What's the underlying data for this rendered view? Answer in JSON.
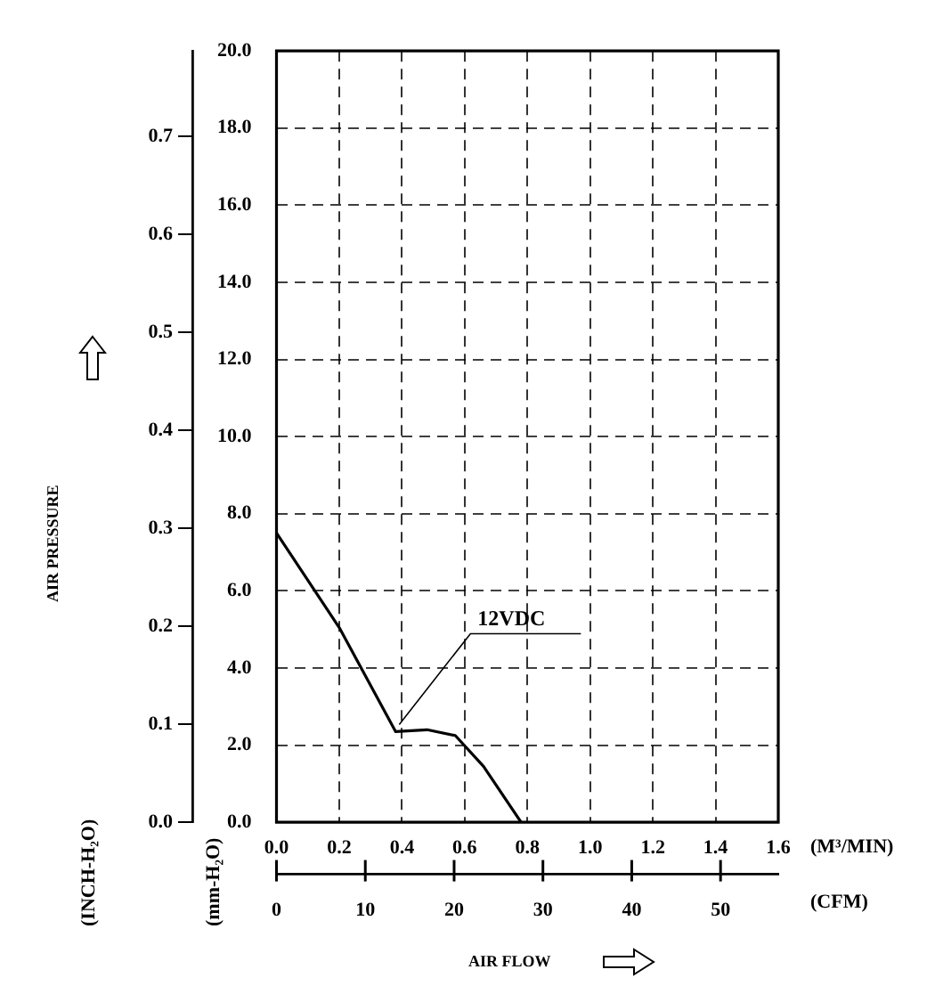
{
  "chart_data": {
    "type": "line",
    "xlabel": "AIR FLOW",
    "x": [
      0,
      0.2,
      0.38,
      0.48,
      0.57,
      0.66,
      0.78
    ],
    "series": [
      {
        "color": "#000000",
        "values": [
          7.5,
          5.05,
          2.35,
          2.4,
          2.25,
          1.45,
          0
        ]
      }
    ],
    "xlim": [
      0,
      1.6
    ],
    "xticks": [
      {
        "value": 0,
        "label": "0.0"
      },
      {
        "value": 0.2,
        "label": "0.2"
      },
      {
        "value": 0.4,
        "label": "0.4"
      },
      {
        "value": 0.6,
        "label": "0.6"
      },
      {
        "value": 0.8,
        "label": "0.8"
      },
      {
        "value": 1,
        "label": "1.0"
      },
      {
        "value": 1.2,
        "label": "1.2"
      },
      {
        "value": 1.4,
        "label": "1.4"
      },
      {
        "value": 1.6,
        "label": "1.6"
      }
    ],
    "ylim": [
      0,
      20
    ],
    "yticks": [
      {
        "value": 0,
        "label": "0.0"
      },
      {
        "value": 2,
        "label": "2.0"
      },
      {
        "value": 4,
        "label": "4.0"
      },
      {
        "value": 6,
        "label": "6.0"
      },
      {
        "value": 8,
        "label": "8.0"
      },
      {
        "value": 10,
        "label": "10.0"
      },
      {
        "value": 12,
        "label": "12.0"
      },
      {
        "value": 14,
        "label": "14.0"
      },
      {
        "value": 16,
        "label": "16.0"
      },
      {
        "value": 18,
        "label": "18.0"
      },
      {
        "value": 20,
        "label": "20.0"
      }
    ],
    "y2lim": [
      0,
      0.787
    ],
    "y2ticks": [
      {
        "value": 0,
        "label": "0.0"
      },
      {
        "value": 0.1,
        "label": "0.1"
      },
      {
        "value": 0.2,
        "label": "0.2"
      },
      {
        "value": 0.3,
        "label": "0.3"
      },
      {
        "value": 0.4,
        "label": "0.4"
      },
      {
        "value": 0.5,
        "label": "0.5"
      },
      {
        "value": 0.6,
        "label": "0.6"
      },
      {
        "value": 0.7,
        "label": "0.7"
      }
    ],
    "x2lim": [
      0,
      56.5
    ],
    "x2ticks": [
      0,
      10,
      20,
      30,
      40,
      50
    ],
    "grid": true,
    "marker": "none",
    "line_style": "solid",
    "annotations": [
      "AIR PRESSURE",
      "(INCH-H₂O)",
      "(mm-H₂O)",
      "(M³/MIN)",
      "(CFM)",
      {
        "text": "12VDC",
        "x": 0.38,
        "y": 2.35
      }
    ]
  }
}
